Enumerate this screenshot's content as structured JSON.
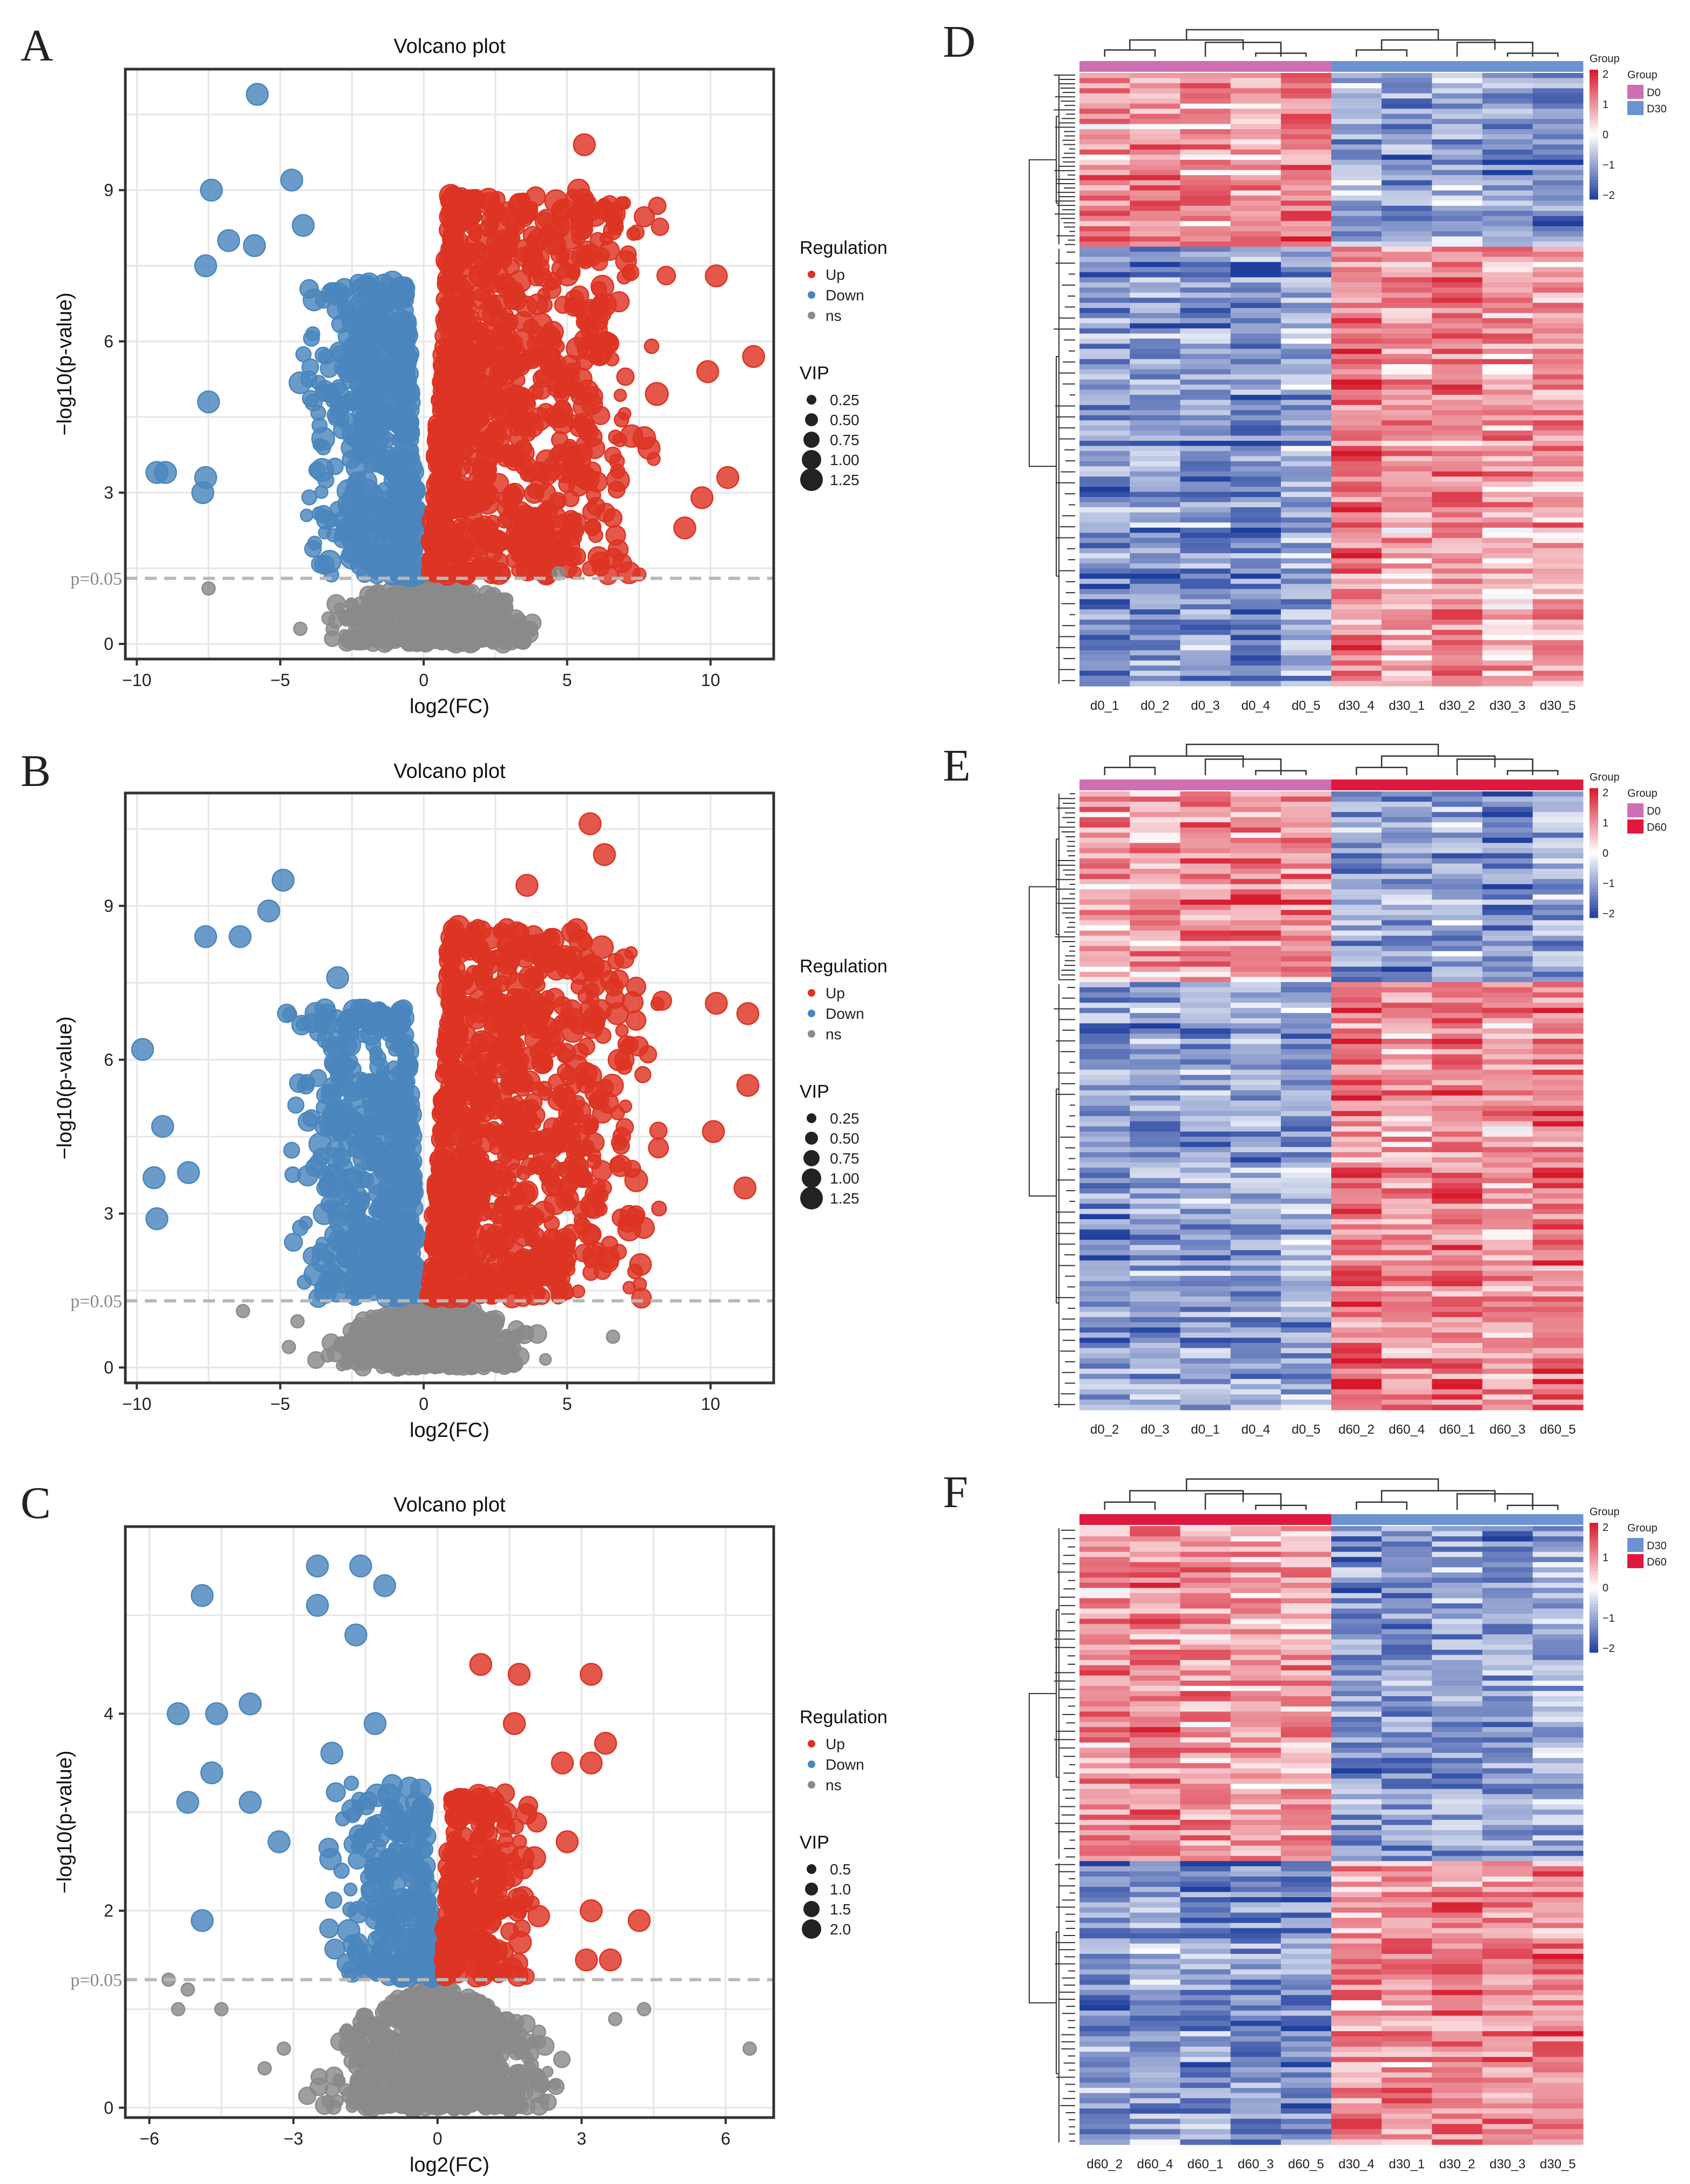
{
  "panels": {
    "A": "A",
    "B": "B",
    "C": "C",
    "D": "D",
    "E": "E",
    "F": "F"
  },
  "colors": {
    "up": "#dd3322",
    "down": "#4a86bd",
    "ns": "#8a8a8a",
    "d0": "#cf6fb3",
    "d30": "#6b93d1",
    "d60": "#e0183f",
    "heat_high": "#d6182a",
    "heat_low": "#1f3f9e"
  },
  "chart_data": [
    {
      "id": "A",
      "type": "scatter",
      "title": "Volcano plot",
      "xlabel": "log2(FC)",
      "ylabel": "−log10(p-value)",
      "xlim": [
        -10.4,
        12.2
      ],
      "ylim": [
        -0.3,
        11.4
      ],
      "xticks": [
        -10,
        -5,
        0,
        5,
        10
      ],
      "xtick_labels": [
        "−10",
        "−5",
        "0",
        "5",
        "10"
      ],
      "yticks": [
        0,
        3,
        6,
        9
      ],
      "threshold": 1.3,
      "threshold_label": "p=0.05",
      "legend": {
        "title": "Regulation",
        "entries": [
          "Up",
          "Down",
          "ns"
        ],
        "vip_title": "VIP",
        "vip_entries": [
          "0.25",
          "0.50",
          "0.75",
          "1.00",
          "1.25"
        ]
      },
      "outliers_down": [
        [
          -5.8,
          10.9
        ],
        [
          -7.4,
          9.0
        ],
        [
          -4.6,
          9.2
        ],
        [
          -6.8,
          8.0
        ],
        [
          -4.2,
          8.3
        ],
        [
          -7.6,
          7.5
        ],
        [
          -9.3,
          3.4
        ],
        [
          -9.0,
          3.4
        ],
        [
          -7.6,
          3.3
        ],
        [
          -7.7,
          3.0
        ],
        [
          -7.5,
          4.8
        ],
        [
          -5.9,
          7.9
        ]
      ],
      "outliers_up": [
        [
          11.5,
          5.7
        ],
        [
          10.2,
          7.3
        ],
        [
          9.9,
          5.4
        ],
        [
          10.6,
          3.3
        ],
        [
          9.7,
          2.9
        ],
        [
          9.1,
          2.3
        ],
        [
          5.6,
          9.9
        ],
        [
          5.4,
          9.0
        ]
      ],
      "outliers_ns": [
        [
          -7.5,
          1.1
        ],
        [
          -4.3,
          0.3
        ],
        [
          4.7,
          1.4
        ],
        [
          2.2,
          0.5
        ]
      ],
      "clusters": [
        {
          "kind": "down",
          "n": 480,
          "xmin": -5.2,
          "xmax": -0.2,
          "ymin": 1.35,
          "ymax": 7.2,
          "shape": "v_left"
        },
        {
          "kind": "up",
          "n": 900,
          "xmin": 0.2,
          "xmax": 9.5,
          "ymin": 1.35,
          "ymax": 8.9,
          "shape": "v_right"
        },
        {
          "kind": "ns",
          "n": 520,
          "xmin": -4.0,
          "xmax": 4.5,
          "ymin": 0.0,
          "ymax": 1.35,
          "shape": "core"
        }
      ]
    },
    {
      "id": "B",
      "type": "scatter",
      "title": "Volcano plot",
      "xlabel": "log2(FC)",
      "ylabel": "−log10(p-value)",
      "xlim": [
        -10.4,
        12.2
      ],
      "ylim": [
        -0.3,
        11.2
      ],
      "xticks": [
        -10,
        -5,
        0,
        5,
        10
      ],
      "xtick_labels": [
        "−10",
        "−5",
        "0",
        "5",
        "10"
      ],
      "yticks": [
        0,
        3,
        6,
        9
      ],
      "threshold": 1.3,
      "threshold_label": "p=0.05",
      "legend": {
        "title": "Regulation",
        "entries": [
          "Up",
          "Down",
          "ns"
        ],
        "vip_title": "VIP",
        "vip_entries": [
          "0.25",
          "0.50",
          "0.75",
          "1.00",
          "1.25"
        ]
      },
      "outliers_down": [
        [
          -4.9,
          9.5
        ],
        [
          -9.8,
          6.2
        ],
        [
          -9.1,
          4.7
        ],
        [
          -9.4,
          3.7
        ],
        [
          -9.3,
          2.9
        ],
        [
          -8.2,
          3.8
        ],
        [
          -7.6,
          8.4
        ],
        [
          -6.4,
          8.4
        ],
        [
          -5.4,
          8.9
        ],
        [
          -3.0,
          7.6
        ]
      ],
      "outliers_up": [
        [
          11.3,
          6.9
        ],
        [
          11.3,
          5.5
        ],
        [
          11.2,
          3.5
        ],
        [
          10.2,
          7.1
        ],
        [
          10.1,
          4.6
        ],
        [
          5.8,
          10.6
        ],
        [
          6.3,
          10.0
        ],
        [
          3.6,
          9.4
        ]
      ],
      "outliers_ns": [
        [
          -6.3,
          1.1
        ],
        [
          -4.4,
          0.9
        ],
        [
          -4.7,
          0.4
        ],
        [
          6.6,
          0.6
        ]
      ],
      "clusters": [
        {
          "kind": "down",
          "n": 480,
          "xmin": -5.5,
          "xmax": -0.2,
          "ymin": 1.35,
          "ymax": 7.0,
          "shape": "v_left"
        },
        {
          "kind": "up",
          "n": 900,
          "xmin": 0.2,
          "xmax": 9.8,
          "ymin": 1.35,
          "ymax": 8.6,
          "shape": "v_right"
        },
        {
          "kind": "ns",
          "n": 520,
          "xmin": -4.0,
          "xmax": 4.5,
          "ymin": 0.0,
          "ymax": 1.35,
          "shape": "core"
        }
      ]
    },
    {
      "id": "C",
      "type": "scatter",
      "title": "Volcano plot",
      "xlabel": "log2(FC)",
      "ylabel": "−log10(p-value)",
      "xlim": [
        -6.5,
        7.0
      ],
      "ylim": [
        -0.1,
        5.9
      ],
      "xticks": [
        -6,
        -3,
        0,
        3,
        6
      ],
      "xtick_labels": [
        "−6",
        "−3",
        "0",
        "3",
        "6"
      ],
      "yticks": [
        0,
        2,
        4
      ],
      "threshold": 1.3,
      "threshold_label": "p=0.05",
      "legend": {
        "title": "Regulation",
        "entries": [
          "Up",
          "Down",
          "ns"
        ],
        "vip_title": "VIP",
        "vip_entries": [
          "0.5",
          "1.0",
          "1.5",
          "2.0"
        ]
      },
      "outliers_down": [
        [
          -2.5,
          5.5
        ],
        [
          -1.6,
          5.5
        ],
        [
          -4.9,
          5.2
        ],
        [
          -2.5,
          5.1
        ],
        [
          -1.1,
          5.3
        ],
        [
          -1.7,
          4.8
        ],
        [
          -5.4,
          4.0
        ],
        [
          -4.6,
          4.0
        ],
        [
          -3.9,
          4.1
        ],
        [
          -4.7,
          3.4
        ],
        [
          -5.2,
          3.1
        ],
        [
          -3.9,
          3.1
        ],
        [
          -4.9,
          1.9
        ],
        [
          -3.3,
          2.7
        ],
        [
          -1.3,
          3.9
        ],
        [
          -2.2,
          3.6
        ]
      ],
      "outliers_up": [
        [
          0.9,
          4.5
        ],
        [
          1.7,
          4.4
        ],
        [
          3.2,
          4.4
        ],
        [
          1.6,
          3.9
        ],
        [
          3.5,
          3.7
        ],
        [
          2.6,
          3.5
        ],
        [
          3.2,
          3.5
        ],
        [
          4.2,
          1.9
        ],
        [
          3.1,
          1.5
        ],
        [
          3.6,
          1.5
        ],
        [
          3.2,
          2.0
        ],
        [
          2.7,
          2.7
        ]
      ],
      "outliers_ns": [
        [
          6.5,
          0.6
        ],
        [
          -5.6,
          1.3
        ],
        [
          -5.2,
          1.2
        ],
        [
          -5.4,
          1.0
        ],
        [
          -4.5,
          1.0
        ],
        [
          4.3,
          1.0
        ],
        [
          3.7,
          0.9
        ],
        [
          -3.6,
          0.4
        ],
        [
          -3.2,
          0.6
        ]
      ],
      "clusters": [
        {
          "kind": "down",
          "n": 230,
          "xmin": -2.7,
          "xmax": -0.1,
          "ymin": 1.33,
          "ymax": 3.3,
          "shape": "v_left"
        },
        {
          "kind": "up",
          "n": 260,
          "xmin": 0.1,
          "xmax": 2.5,
          "ymin": 1.33,
          "ymax": 3.2,
          "shape": "v_right"
        },
        {
          "kind": "ns",
          "n": 900,
          "xmin": -2.8,
          "xmax": 2.8,
          "ymin": 0.0,
          "ymax": 1.3,
          "shape": "core"
        }
      ]
    },
    {
      "id": "D",
      "type": "heatmap",
      "samples": [
        "d0_1",
        "d0_2",
        "d0_3",
        "d0_4",
        "d0_5",
        "d30_4",
        "d30_1",
        "d30_2",
        "d30_3",
        "d30_5"
      ],
      "groups": [
        "D0",
        "D0",
        "D0",
        "D0",
        "D0",
        "D30",
        "D30",
        "D30",
        "D30",
        "D30"
      ],
      "group_legend": {
        "title": "Group",
        "entries": [
          "D0",
          "D30"
        ]
      },
      "color_scale": {
        "title": "Group",
        "ticks": [
          "2",
          "1",
          "0",
          "−1",
          "−2"
        ]
      },
      "block_split": 0.28,
      "top_block": [
        "up",
        "up",
        "up",
        "up",
        "up",
        "down",
        "down",
        "down",
        "down",
        "down"
      ],
      "bottom_block": [
        "down",
        "down",
        "down",
        "down",
        "down",
        "up",
        "up",
        "up",
        "up",
        "up"
      ],
      "seed": 11
    },
    {
      "id": "E",
      "type": "heatmap",
      "samples": [
        "d0_2",
        "d0_3",
        "d0_1",
        "d0_4",
        "d0_5",
        "d60_2",
        "d60_4",
        "d60_1",
        "d60_3",
        "d60_5"
      ],
      "groups": [
        "D0",
        "D0",
        "D0",
        "D0",
        "D0",
        "D60",
        "D60",
        "D60",
        "D60",
        "D60"
      ],
      "group_legend": {
        "title": "Group",
        "entries": [
          "D0",
          "D60"
        ]
      },
      "color_scale": {
        "title": "Group",
        "ticks": [
          "2",
          "1",
          "0",
          "−1",
          "−2"
        ]
      },
      "block_split": 0.31,
      "top_block": [
        "up",
        "up",
        "up",
        "up",
        "up",
        "down",
        "down",
        "down",
        "down",
        "down"
      ],
      "bottom_block": [
        "down",
        "down",
        "down",
        "down",
        "down",
        "up",
        "up",
        "up",
        "up",
        "up"
      ],
      "seed": 23
    },
    {
      "id": "F",
      "type": "heatmap",
      "samples": [
        "d60_2",
        "d60_4",
        "d60_1",
        "d60_3",
        "d60_5",
        "d30_4",
        "d30_1",
        "d30_2",
        "d30_3",
        "d30_5"
      ],
      "groups": [
        "D60",
        "D60",
        "D60",
        "D60",
        "D60",
        "D30",
        "D30",
        "D30",
        "D30",
        "D30"
      ],
      "group_legend": {
        "title": "Group",
        "entries": [
          "D30",
          "D60"
        ]
      },
      "color_scale": {
        "title": "Group",
        "ticks": [
          "2",
          "1",
          "0",
          "−1",
          "−2"
        ]
      },
      "block_split": 0.54,
      "top_block": [
        "up",
        "up",
        "up",
        "up",
        "up",
        "down",
        "down",
        "down",
        "down",
        "down"
      ],
      "bottom_block": [
        "down",
        "down",
        "down",
        "down",
        "down",
        "up",
        "up",
        "up",
        "up",
        "up"
      ],
      "seed": 37
    }
  ]
}
